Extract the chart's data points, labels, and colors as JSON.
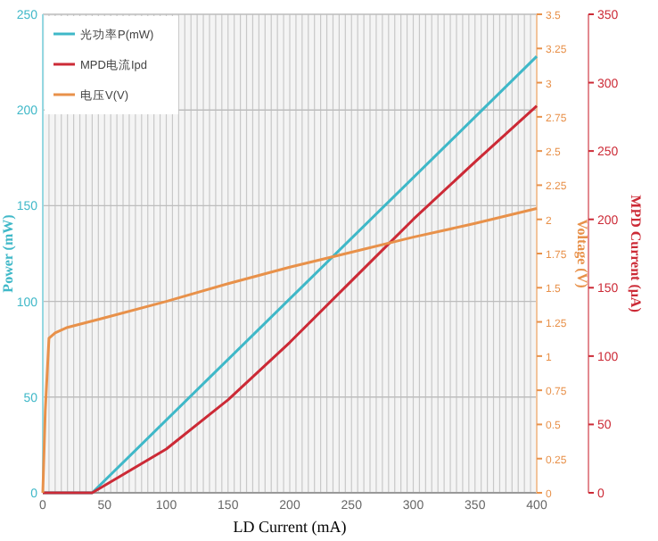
{
  "chart_data": {
    "type": "line",
    "xlabel": "LD Current (mA)",
    "ylabel": "Power (mW)",
    "y2label": "Voltage (V)",
    "y3label": "MPD Current (μA)",
    "xlim": [
      0,
      400
    ],
    "xticks": [
      0,
      50,
      100,
      150,
      200,
      250,
      300,
      350,
      400
    ],
    "ylim": [
      0,
      250
    ],
    "yticks": [
      0,
      50,
      100,
      150,
      200,
      250
    ],
    "y2lim": [
      0,
      3.5
    ],
    "y2ticks": [
      0,
      0.25,
      0.5,
      0.75,
      1,
      1.25,
      1.5,
      1.75,
      2,
      2.25,
      2.5,
      2.75,
      3,
      3.25,
      3.5
    ],
    "y3lim": [
      0,
      350
    ],
    "y3ticks": [
      0,
      50,
      100,
      150,
      200,
      250,
      300,
      350
    ],
    "grid": true,
    "legend": "top left",
    "line_style": "solid",
    "series": [
      {
        "name": "光功率P(mW)",
        "color": "#3fb8c8",
        "x": [
          0,
          40,
          400
        ],
        "values": [
          0,
          0,
          228
        ]
      },
      {
        "name": "MPD电流Ipd",
        "color": "#cc2a36",
        "axis": "y3",
        "x": [
          0,
          40,
          100,
          150,
          200,
          250,
          300,
          350,
          400
        ],
        "values": [
          0,
          0,
          32,
          68,
          110,
          155,
          200,
          242,
          283
        ]
      },
      {
        "name": "电压V(V)",
        "color": "#e8914a",
        "axis": "y2",
        "x": [
          0,
          2,
          5,
          10,
          20,
          50,
          100,
          150,
          200,
          250,
          300,
          350,
          400
        ],
        "values": [
          0,
          0.6,
          1.13,
          1.17,
          1.21,
          1.28,
          1.4,
          1.53,
          1.65,
          1.76,
          1.87,
          1.97,
          2.08
        ]
      }
    ]
  }
}
